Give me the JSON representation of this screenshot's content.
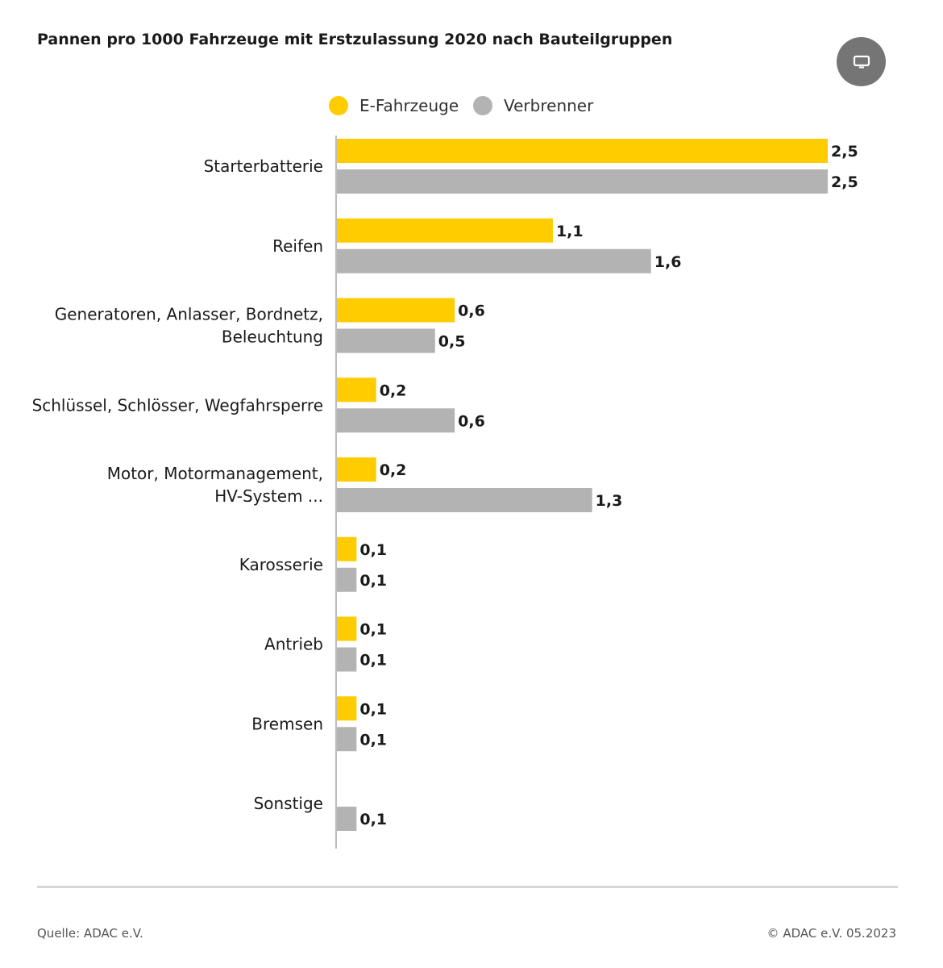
{
  "header": {
    "title": "Pannen pro 1000 Fahrzeuge mit Erstzulassung 2020 nach Bauteilgruppen",
    "display_icon": "monitor-icon"
  },
  "legend": {
    "items": [
      {
        "label": "E-Fahrzeuge",
        "color": "#ffcc00"
      },
      {
        "label": "Verbrenner",
        "color": "#b3b3b3"
      }
    ]
  },
  "chart_data": {
    "type": "bar",
    "orientation": "horizontal",
    "title": "Pannen pro 1000 Fahrzeuge mit Erstzulassung 2020 nach Bauteilgruppen",
    "xlim": [
      0,
      2.5
    ],
    "grid": false,
    "legend_position": "top",
    "categories": [
      [
        "Starterbatterie"
      ],
      [
        "Reifen"
      ],
      [
        "Generatoren, Anlasser, Bordnetz,",
        "Beleuchtung"
      ],
      [
        "Schlüssel, Schlösser, Wegfahrsperre"
      ],
      [
        "Motor, Motormanagement,",
        "HV-System ..."
      ],
      [
        "Karosserie"
      ],
      [
        "Antrieb"
      ],
      [
        "Bremsen"
      ],
      [
        "Sonstige"
      ]
    ],
    "series": [
      {
        "name": "E-Fahrzeuge",
        "color": "#ffcc00",
        "values": [
          2.5,
          1.1,
          0.6,
          0.2,
          0.2,
          0.1,
          0.1,
          0.1,
          null
        ],
        "labels": [
          "2,5",
          "1,1",
          "0,6",
          "0,2",
          "0,2",
          "0,1",
          "0,1",
          "0,1",
          null
        ]
      },
      {
        "name": "Verbrenner",
        "color": "#b3b3b3",
        "values": [
          2.5,
          1.6,
          0.5,
          0.6,
          1.3,
          0.1,
          0.1,
          0.1,
          0.1
        ],
        "labels": [
          "2,5",
          "1,6",
          "0,5",
          "0,6",
          "1,3",
          "0,1",
          "0,1",
          "0,1",
          "0,1"
        ]
      }
    ]
  },
  "footer": {
    "source": "Quelle: ADAC e.V.",
    "copyright": "© ADAC e.V. 05.2023"
  }
}
